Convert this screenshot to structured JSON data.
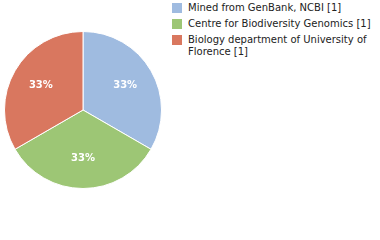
{
  "chart_data": {
    "type": "pie",
    "categories": [
      "Mined from GenBank, NCBI [1]",
      "Centre for Biodiversity Genomics [1]",
      "Biology department of University of Florence [1]"
    ],
    "values": [
      33,
      33,
      33
    ],
    "value_labels": [
      "33%",
      "33%",
      "33%"
    ],
    "data_labels": true,
    "colors": [
      "#9fbbe0",
      "#9dc675",
      "#d9775f"
    ],
    "legend": "top-right"
  }
}
